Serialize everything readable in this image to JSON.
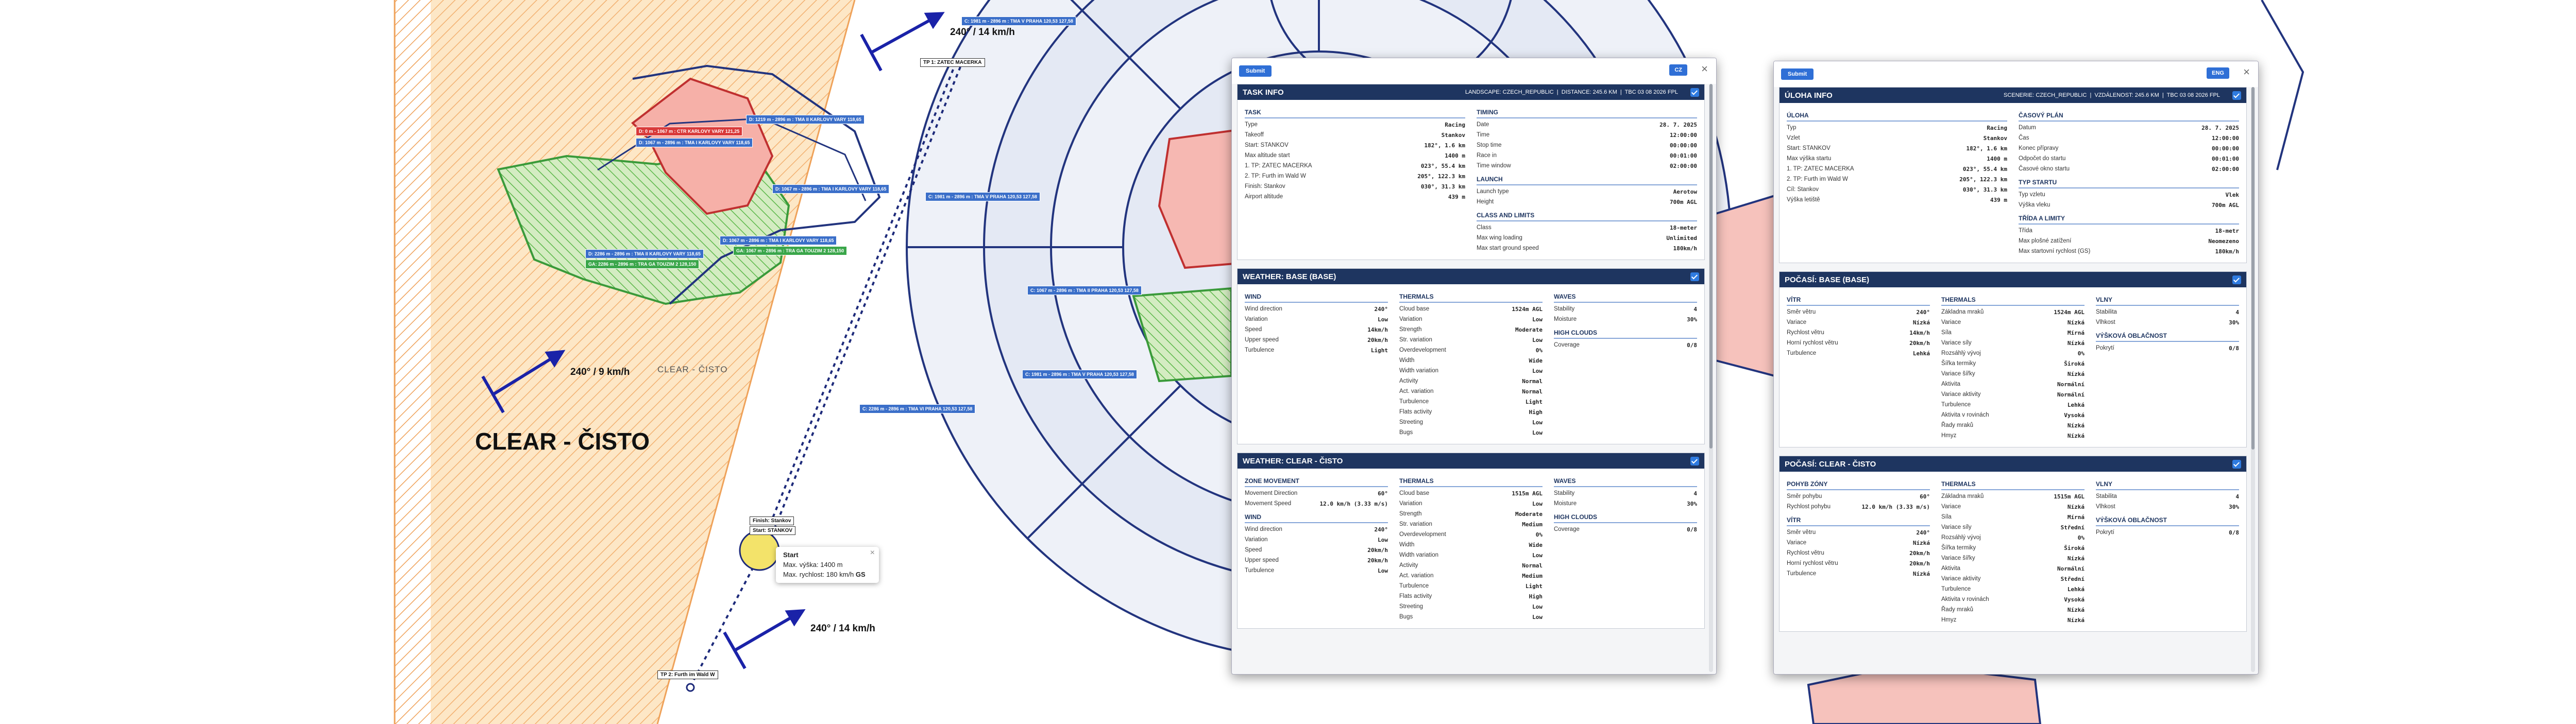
{
  "map": {
    "wind_arrows": [
      "240° / 14 km/h",
      "240° / 9 km/h",
      "240° / 14 km/h"
    ],
    "zone_labels": [
      "CLEAR - ČISTO",
      "CLEAR - ČISTO"
    ],
    "airspaces": [
      "C: 1981 m - 2896 m : TMA V PRAHA 120,53 127,58",
      "D: 1219 m - 2896 m : TMA II KARLOVY VARY 118,65",
      "D: 0 m - 1067 m : CTR KARLOVY VARY 121,25",
      "D: 1067 m - 2896 m : TMA I KARLOVY VARY 118,65",
      "D: 1067 m - 2896 m : TMA I KARLOVY VARY 118,65",
      "C: 1981 m - 2896 m : TMA V PRAHA 120,53 127,58",
      "D: 1067 m - 2896 m : TMA I KARLOVY VARY 118,65",
      "D: 2286 m - 2896 m : TMA II KARLOVY VARY 118,65",
      "GA: 1067 m - 2896 m : TRA GA TOUZIM 2 128,150",
      "GA: 2286 m - 2896 m : TRA GA TOUZIM 2 128,150",
      "C: 1067 m - 2896 m : TMA II PRAHA 120,53 127,58",
      "C: 1981 m - 2896 m : TMA V PRAHA 120,53 127,58",
      "C: 2286 m - 2896 m : TMA VI PRAHA 120,53 127,58"
    ],
    "turnpoints": [
      "TP 1: ZATEC MACERKA",
      "Finish: Stankov",
      "Start: STANKOV",
      "TP 2: Furth im Wald W"
    ],
    "popup": {
      "title": "Start",
      "altitude": "Max. výška: 1400 m",
      "speed": "Max. rychlost: 180 km/h",
      "speed_ref": "GS",
      "close": "×"
    }
  },
  "panels": [
    {
      "submit": "Submit",
      "lang": "CZ",
      "close": "×",
      "blocks": [
        {
          "title": "TASK INFO",
          "info": "LANDSCAPE: CZECH_REPUBLIC  |  DISTANCE: 245.6 KM  |  TBC 03 08 2026 FPL",
          "columns": [
            [
              {
                "heading": "TASK",
                "rows": [
                  [
                    "Type",
                    "Racing"
                  ],
                  [
                    "Takeoff",
                    "Stankov"
                  ],
                  [
                    "Start: STANKOV",
                    "182°, 1.6 km"
                  ],
                  [
                    "Max altitude start",
                    "1400 m"
                  ],
                  [
                    "1. TP: ZATEC MACERKA",
                    "023°, 55.4 km"
                  ],
                  [
                    "2. TP: Furth im Wald W",
                    "205°, 122.3 km"
                  ],
                  [
                    "Finish: Stankov",
                    "030°, 31.3 km"
                  ],
                  [
                    "Airport altitude",
                    "439 m"
                  ]
                ]
              }
            ],
            [
              {
                "heading": "TIMING",
                "rows": [
                  [
                    "Date",
                    "28. 7. 2025"
                  ],
                  [
                    "Time",
                    "12:00:00"
                  ],
                  [
                    "Stop time",
                    "00:00:00"
                  ],
                  [
                    "Race in",
                    "00:01:00"
                  ],
                  [
                    "Time window",
                    "02:00:00"
                  ]
                ]
              },
              {
                "heading": "LAUNCH",
                "rows": [
                  [
                    "Launch type",
                    "Aerotow"
                  ],
                  [
                    "Height",
                    "700m AGL"
                  ]
                ]
              },
              {
                "heading": "CLASS AND LIMITS",
                "rows": [
                  [
                    "Class",
                    "18-meter"
                  ],
                  [
                    "Max wing loading",
                    "Unlimited"
                  ],
                  [
                    "Max start ground speed",
                    "180km/h"
                  ]
                ]
              }
            ]
          ]
        },
        {
          "title": "WEATHER: BASE (BASE)",
          "columns": [
            [
              {
                "heading": "WIND",
                "rows": [
                  [
                    "Wind direction",
                    "240°"
                  ],
                  [
                    "Variation",
                    "Low"
                  ],
                  [
                    "Speed",
                    "14km/h"
                  ],
                  [
                    "Upper speed",
                    "20km/h"
                  ],
                  [
                    "Turbulence",
                    "Light"
                  ]
                ]
              }
            ],
            [
              {
                "heading": "THERMALS",
                "rows": [
                  [
                    "Cloud base",
                    "1524m AGL"
                  ],
                  [
                    "Variation",
                    "Low"
                  ],
                  [
                    "Strength",
                    "Moderate"
                  ],
                  [
                    "Str. variation",
                    "Low"
                  ],
                  [
                    "Overdevelopment",
                    "0%"
                  ],
                  [
                    "Width",
                    "Wide"
                  ],
                  [
                    "Width variation",
                    "Low"
                  ],
                  [
                    "Activity",
                    "Normal"
                  ],
                  [
                    "Act. variation",
                    "Normal"
                  ],
                  [
                    "Turbulence",
                    "Light"
                  ],
                  [
                    "Flats activity",
                    "High"
                  ],
                  [
                    "Streeting",
                    "Low"
                  ],
                  [
                    "Bugs",
                    "Low"
                  ]
                ]
              }
            ],
            [
              {
                "heading": "WAVES",
                "rows": [
                  [
                    "Stability",
                    "4"
                  ],
                  [
                    "Moisture",
                    "30%"
                  ]
                ]
              },
              {
                "heading": "HIGH CLOUDS",
                "rows": [
                  [
                    "Coverage",
                    "0/8"
                  ]
                ]
              }
            ]
          ]
        },
        {
          "title": "WEATHER: CLEAR - ČISTO",
          "columns": [
            [
              {
                "heading": "ZONE MOVEMENT",
                "rows": [
                  [
                    "Movement Direction",
                    "60°"
                  ],
                  [
                    "Movement Speed",
                    "12.0 km/h (3.33 m/s)"
                  ]
                ]
              },
              {
                "heading": "WIND",
                "rows": [
                  [
                    "Wind direction",
                    "240°"
                  ],
                  [
                    "Variation",
                    "Low"
                  ],
                  [
                    "Speed",
                    "20km/h"
                  ],
                  [
                    "Upper speed",
                    "20km/h"
                  ],
                  [
                    "Turbulence",
                    "Low"
                  ]
                ]
              }
            ],
            [
              {
                "heading": "THERMALS",
                "rows": [
                  [
                    "Cloud base",
                    "1515m AGL"
                  ],
                  [
                    "Variation",
                    "Low"
                  ],
                  [
                    "Strength",
                    "Moderate"
                  ],
                  [
                    "Str. variation",
                    "Medium"
                  ],
                  [
                    "Overdevelopment",
                    "0%"
                  ],
                  [
                    "Width",
                    "Wide"
                  ],
                  [
                    "Width variation",
                    "Low"
                  ],
                  [
                    "Activity",
                    "Normal"
                  ],
                  [
                    "Act. variation",
                    "Medium"
                  ],
                  [
                    "Turbulence",
                    "Light"
                  ],
                  [
                    "Flats activity",
                    "High"
                  ],
                  [
                    "Streeting",
                    "Low"
                  ],
                  [
                    "Bugs",
                    "Low"
                  ]
                ]
              }
            ],
            [
              {
                "heading": "WAVES",
                "rows": [
                  [
                    "Stability",
                    "4"
                  ],
                  [
                    "Moisture",
                    "30%"
                  ]
                ]
              },
              {
                "heading": "HIGH CLOUDS",
                "rows": [
                  [
                    "Coverage",
                    "0/8"
                  ]
                ]
              }
            ]
          ]
        }
      ]
    },
    {
      "submit": "Submit",
      "lang": "ENG",
      "close": "×",
      "blocks": [
        {
          "title": "ÚLOHA INFO",
          "info": "SCENERIE: CZECH_REPUBLIC  |  VZDÁLENOST: 245.6 KM  |  TBC 03 08 2026 FPL",
          "columns": [
            [
              {
                "heading": "ÚLOHA",
                "rows": [
                  [
                    "Typ",
                    "Racing"
                  ],
                  [
                    "Vzlet",
                    "Stankov"
                  ],
                  [
                    "Start: STANKOV",
                    "182°, 1.6 km"
                  ],
                  [
                    "Max výška startu",
                    "1400 m"
                  ],
                  [
                    "1. TP: ZATEC MACERKA",
                    "023°, 55.4 km"
                  ],
                  [
                    "2. TP: Furth im Wald W",
                    "205°, 122.3 km"
                  ],
                  [
                    "Cíl: Stankov",
                    "030°, 31.3 km"
                  ],
                  [
                    "Výška letiště",
                    "439 m"
                  ]
                ]
              }
            ],
            [
              {
                "heading": "ČASOVÝ PLÁN",
                "rows": [
                  [
                    "Datum",
                    "28. 7. 2025"
                  ],
                  [
                    "Čas",
                    "12:00:00"
                  ],
                  [
                    "Konec přípravy",
                    "00:00:00"
                  ],
                  [
                    "Odpočet do startu",
                    "00:01:00"
                  ],
                  [
                    "Časové okno startu",
                    "02:00:00"
                  ]
                ]
              },
              {
                "heading": "TYP STARTU",
                "rows": [
                  [
                    "Typ vzletu",
                    "Vlek"
                  ],
                  [
                    "Výška vleku",
                    "700m AGL"
                  ]
                ]
              },
              {
                "heading": "TŘÍDA A LIMITY",
                "rows": [
                  [
                    "Třída",
                    "18-metr"
                  ],
                  [
                    "Max plošné zatížení",
                    "Neomezeno"
                  ],
                  [
                    "Max startovní rychlost (GS)",
                    "180km/h"
                  ]
                ]
              }
            ]
          ]
        },
        {
          "title": "POČASÍ: BASE (BASE)",
          "columns": [
            [
              {
                "heading": "VÍTR",
                "rows": [
                  [
                    "Směr větru",
                    "240°"
                  ],
                  [
                    "Variace",
                    "Nízká"
                  ],
                  [
                    "Rychlost větru",
                    "14km/h"
                  ],
                  [
                    "Horní rychlost větru",
                    "20km/h"
                  ],
                  [
                    "Turbulence",
                    "Lehká"
                  ]
                ]
              }
            ],
            [
              {
                "heading": "THERMALS",
                "rows": [
                  [
                    "Základna mraků",
                    "1524m AGL"
                  ],
                  [
                    "Variace",
                    "Nízká"
                  ],
                  [
                    "Síla",
                    "Mírná"
                  ],
                  [
                    "Variace síly",
                    "Nízká"
                  ],
                  [
                    "Rozsáhlý vývoj",
                    "0%"
                  ],
                  [
                    "Šířka termiky",
                    "Široká"
                  ],
                  [
                    "Variace šířky",
                    "Nízká"
                  ],
                  [
                    "Aktivita",
                    "Normální"
                  ],
                  [
                    "Variace aktivity",
                    "Normální"
                  ],
                  [
                    "Turbulence",
                    "Lehká"
                  ],
                  [
                    "Aktivita v rovinách",
                    "Vysoká"
                  ],
                  [
                    "Řady mraků",
                    "Nízká"
                  ],
                  [
                    "Hmyz",
                    "Nízká"
                  ]
                ]
              }
            ],
            [
              {
                "heading": "VLNY",
                "rows": [
                  [
                    "Stabilita",
                    "4"
                  ],
                  [
                    "Vlhkost",
                    "30%"
                  ]
                ]
              },
              {
                "heading": "VÝŠKOVÁ OBLAČNOST",
                "rows": [
                  [
                    "Pokrytí",
                    "0/8"
                  ]
                ]
              }
            ]
          ]
        },
        {
          "title": "POČASÍ: CLEAR - ČISTO",
          "columns": [
            [
              {
                "heading": "POHYB ZÓNY",
                "rows": [
                  [
                    "Směr pohybu",
                    "60°"
                  ],
                  [
                    "Rychlost pohybu",
                    "12.0 km/h (3.33 m/s)"
                  ]
                ]
              },
              {
                "heading": "VÍTR",
                "rows": [
                  [
                    "Směr větru",
                    "240°"
                  ],
                  [
                    "Variace",
                    "Nízká"
                  ],
                  [
                    "Rychlost větru",
                    "20km/h"
                  ],
                  [
                    "Horní rychlost větru",
                    "20km/h"
                  ],
                  [
                    "Turbulence",
                    "Nízká"
                  ]
                ]
              }
            ],
            [
              {
                "heading": "THERMALS",
                "rows": [
                  [
                    "Základna mraků",
                    "1515m AGL"
                  ],
                  [
                    "Variace",
                    "Nízká"
                  ],
                  [
                    "Síla",
                    "Mírná"
                  ],
                  [
                    "Variace síly",
                    "Střední"
                  ],
                  [
                    "Rozsáhlý vývoj",
                    "0%"
                  ],
                  [
                    "Šířka termiky",
                    "Široká"
                  ],
                  [
                    "Variace šířky",
                    "Nízká"
                  ],
                  [
                    "Aktivita",
                    "Normální"
                  ],
                  [
                    "Variace aktivity",
                    "Střední"
                  ],
                  [
                    "Turbulence",
                    "Lehká"
                  ],
                  [
                    "Aktivita v rovinách",
                    "Vysoká"
                  ],
                  [
                    "Řady mraků",
                    "Nízká"
                  ],
                  [
                    "Hmyz",
                    "Nízká"
                  ]
                ]
              }
            ],
            [
              {
                "heading": "VLNY",
                "rows": [
                  [
                    "Stabilita",
                    "4"
                  ],
                  [
                    "Vlhkost",
                    "30%"
                  ]
                ]
              },
              {
                "heading": "VÝŠKOVÁ OBLAČNOST",
                "rows": [
                  [
                    "Pokrytí",
                    "0/8"
                  ]
                ]
              }
            ]
          ]
        }
      ]
    }
  ]
}
